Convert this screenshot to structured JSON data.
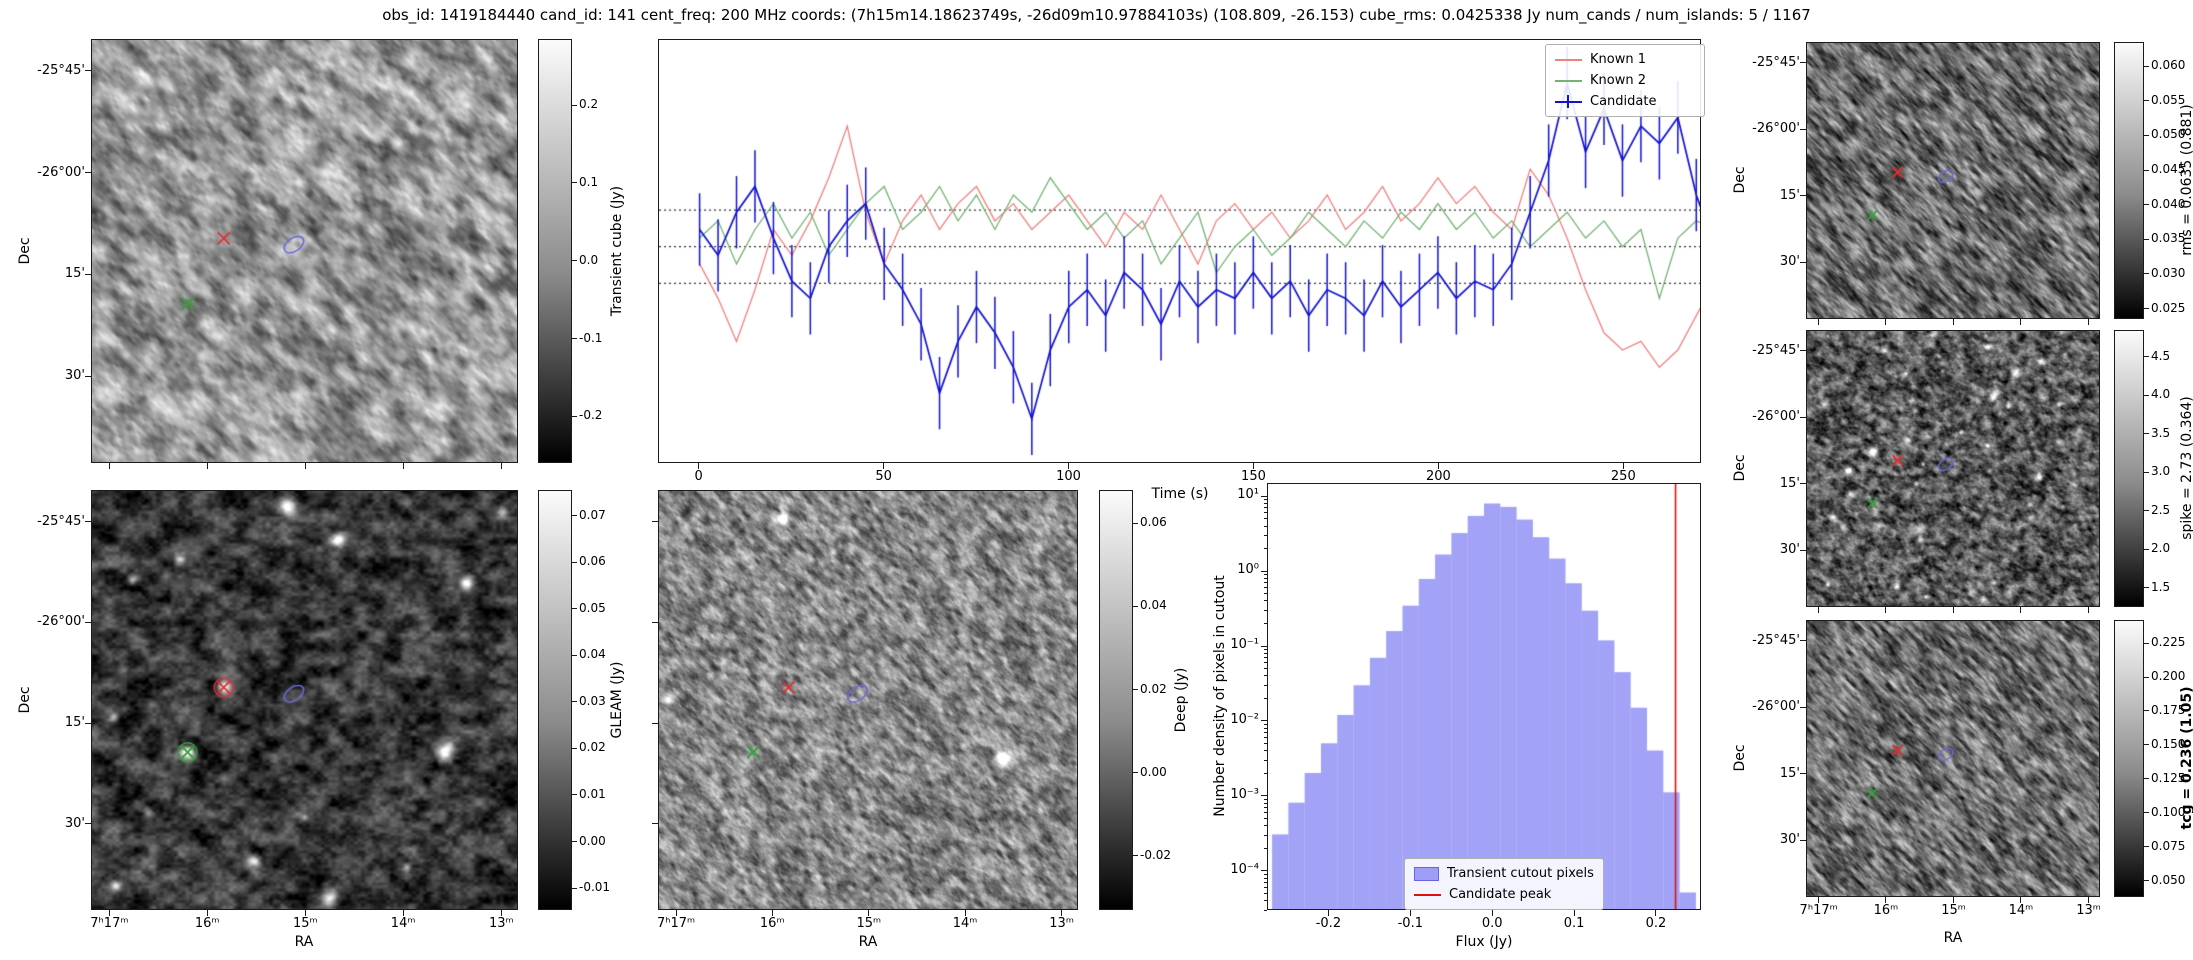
{
  "title": "obs_id: 1419184440 cand_id: 141 cent_freq: 200 MHz coords: (7h15m14.18623749s, -26d09m10.97884103s) (108.809, -26.153) cube_rms: 0.0425338 Jy num_cands / num_islands: 5 / 1167",
  "axis_labels": {
    "dec": "Dec",
    "ra": "RA"
  },
  "dec_ticks": {
    "labels": [
      "-25°45'",
      "-26°00'",
      "15'",
      "30'"
    ],
    "fractions": [
      0.075,
      0.315,
      0.555,
      0.795
    ]
  },
  "ra_ticks": {
    "labels": [
      "7ʰ17ᵐ",
      "16ᵐ",
      "15ᵐ",
      "14ᵐ",
      "13ᵐ"
    ],
    "fractions": [
      0.043,
      0.272,
      0.502,
      0.731,
      0.961
    ]
  },
  "markers": {
    "known_1": {
      "shape": "x",
      "color": "#e03030",
      "fx": 0.31,
      "fy": 0.47
    },
    "known_2": {
      "shape": "x",
      "color": "#35a33a",
      "fx": 0.225,
      "fy": 0.625
    },
    "candidate": {
      "shape": "ellipse",
      "color": "#6a6ad8",
      "fx": 0.475,
      "fy": 0.485
    }
  },
  "cutouts": {
    "transient": {
      "colorbar": {
        "label": "Transient cube (Jy)",
        "tick_labels": [
          "0.2",
          "0.1",
          "0.0",
          "-0.1",
          "-0.2"
        ],
        "tick_values": [
          0.2,
          0.1,
          0.0,
          -0.1,
          -0.2
        ],
        "vmin": -0.26,
        "vmax": 0.285
      }
    },
    "gleam": {
      "colorbar": {
        "label": "GLEAM (Jy)",
        "tick_labels": [
          "0.07",
          "0.06",
          "0.05",
          "0.04",
          "0.03",
          "0.02",
          "0.01",
          "0.00",
          "-0.01"
        ],
        "tick_values": [
          0.07,
          0.06,
          0.05,
          0.04,
          0.03,
          0.02,
          0.01,
          0.0,
          -0.01
        ],
        "vmin": -0.0147,
        "vmax": 0.0755
      }
    },
    "deep": {
      "colorbar": {
        "label": "Deep (Jy)",
        "tick_labels": [
          "0.06",
          "0.04",
          "0.02",
          "0.00",
          "-0.02"
        ],
        "tick_values": [
          0.06,
          0.04,
          0.02,
          0.0,
          -0.02
        ],
        "vmin": -0.033,
        "vmax": 0.068
      }
    },
    "rms": {
      "colorbar": {
        "label": "rms = 0.0635 (0.881)",
        "tick_labels": [
          "0.060",
          "0.055",
          "0.050",
          "0.045",
          "0.040",
          "0.035",
          "0.030",
          "0.025"
        ],
        "tick_values": [
          0.06,
          0.055,
          0.05,
          0.045,
          0.04,
          0.035,
          0.03,
          0.025
        ],
        "vmin": 0.0235,
        "vmax": 0.0635
      }
    },
    "spike": {
      "colorbar": {
        "label": "spike = 2.73 (0.364)",
        "tick_labels": [
          "4.5",
          "4.0",
          "3.5",
          "3.0",
          "2.5",
          "2.0",
          "1.5"
        ],
        "tick_values": [
          4.5,
          4.0,
          3.5,
          3.0,
          2.5,
          2.0,
          1.5
        ],
        "vmin": 1.25,
        "vmax": 4.85
      }
    },
    "tcg": {
      "colorbar": {
        "label": "tcg = 0.236 (1.05)",
        "bold": true,
        "tick_labels": [
          "0.225",
          "0.200",
          "0.175",
          "0.150",
          "0.125",
          "0.100",
          "0.075",
          "0.050"
        ],
        "tick_values": [
          0.225,
          0.2,
          0.175,
          0.15,
          0.125,
          0.1,
          0.075,
          0.05
        ],
        "vmin": 0.038,
        "vmax": 0.242
      }
    }
  },
  "chart_data": [
    {
      "type": "line",
      "name": "lightcurve",
      "title": "",
      "xlabel": "Time (s)",
      "ylabel": "",
      "xlim": [
        -11,
        271
      ],
      "ylim": [
        -0.25,
        0.24
      ],
      "xticks": [
        0,
        50,
        100,
        150,
        200,
        250
      ],
      "xtick_labels": [
        "0",
        "50",
        "100",
        "150",
        "200",
        "250"
      ],
      "hlines": {
        "values": [
          0.0425,
          0.0,
          -0.0425
        ],
        "style": "dotted",
        "color": "#000000"
      },
      "legend_position": "upper right",
      "x": [
        0,
        5,
        10,
        15,
        20,
        25,
        30,
        35,
        40,
        45,
        50,
        55,
        60,
        65,
        70,
        75,
        80,
        85,
        90,
        95,
        100,
        105,
        110,
        115,
        120,
        125,
        130,
        135,
        140,
        145,
        150,
        155,
        160,
        165,
        170,
        175,
        180,
        185,
        190,
        195,
        200,
        205,
        210,
        215,
        220,
        225,
        230,
        235,
        240,
        245,
        250,
        255,
        260,
        265,
        270,
        275
      ],
      "series": [
        {
          "name": "Known 1",
          "color": "#f08080",
          "values": [
            -0.02,
            -0.06,
            -0.11,
            -0.05,
            0.02,
            -0.01,
            0.03,
            0.08,
            0.14,
            0.04,
            -0.02,
            0.03,
            0.06,
            0.02,
            0.05,
            0.07,
            0.03,
            0.05,
            0.02,
            0.04,
            0.06,
            0.03,
            0.0,
            0.04,
            0.02,
            0.06,
            0.02,
            -0.02,
            0.03,
            0.05,
            0.02,
            0.04,
            0.01,
            0.03,
            0.06,
            0.02,
            0.04,
            0.07,
            0.03,
            0.05,
            0.08,
            0.05,
            0.07,
            0.04,
            0.02,
            0.09,
            0.06,
            0.01,
            -0.05,
            -0.1,
            -0.12,
            -0.11,
            -0.14,
            -0.12,
            -0.08,
            -0.04
          ]
        },
        {
          "name": "Known 2",
          "color": "#74b274",
          "values": [
            0.01,
            0.03,
            -0.02,
            0.02,
            0.05,
            0.01,
            0.04,
            -0.01,
            0.02,
            0.05,
            0.07,
            0.02,
            0.04,
            0.07,
            0.03,
            0.06,
            0.02,
            0.06,
            0.04,
            0.08,
            0.05,
            0.02,
            0.04,
            0.01,
            0.03,
            -0.02,
            0.01,
            0.04,
            -0.03,
            0.0,
            0.02,
            -0.01,
            0.01,
            0.04,
            0.02,
            0.0,
            0.03,
            0.01,
            0.04,
            0.02,
            0.05,
            0.02,
            0.04,
            0.01,
            0.03,
            0.0,
            0.02,
            0.04,
            0.01,
            0.03,
            0.0,
            0.02,
            -0.06,
            0.01,
            0.03,
            0.02
          ]
        },
        {
          "name": "Candidate",
          "color": "#1212d0",
          "yerr": 0.042,
          "values": [
            0.02,
            -0.01,
            0.04,
            0.07,
            0.01,
            -0.04,
            -0.06,
            0.0,
            0.03,
            0.05,
            -0.02,
            -0.05,
            -0.09,
            -0.17,
            -0.11,
            -0.07,
            -0.1,
            -0.14,
            -0.2,
            -0.12,
            -0.07,
            -0.05,
            -0.08,
            -0.03,
            -0.05,
            -0.09,
            -0.04,
            -0.07,
            -0.05,
            -0.06,
            -0.03,
            -0.06,
            -0.04,
            -0.08,
            -0.05,
            -0.06,
            -0.08,
            -0.04,
            -0.07,
            -0.05,
            -0.03,
            -0.06,
            -0.04,
            -0.05,
            -0.02,
            0.04,
            0.1,
            0.19,
            0.11,
            0.16,
            0.1,
            0.14,
            0.12,
            0.15,
            0.06,
            0.0
          ]
        }
      ]
    },
    {
      "type": "bar",
      "name": "flux-histogram",
      "title": "",
      "xlabel": "Flux (Jy)",
      "ylabel": "Number density of pixels in cutout",
      "yscale": "log",
      "xlim": [
        -0.275,
        0.255
      ],
      "ylim": [
        3e-05,
        15
      ],
      "xticks": [
        -0.2,
        -0.1,
        0.0,
        0.1,
        0.2
      ],
      "xtick_labels": [
        "-0.2",
        "-0.1",
        "0.0",
        "0.1",
        "0.2"
      ],
      "ytick_values": [
        10,
        1,
        0.1,
        0.01,
        0.001,
        0.0001
      ],
      "ytick_labels": [
        "10¹",
        "10⁰",
        "10⁻¹",
        "10⁻²",
        "10⁻³",
        "10⁻⁴"
      ],
      "bar_color": "rgba(100,100,240,0.6)",
      "bin_width": 0.02,
      "bin_centers": [
        -0.26,
        -0.24,
        -0.22,
        -0.2,
        -0.18,
        -0.16,
        -0.14,
        -0.12,
        -0.1,
        -0.08,
        -0.06,
        -0.04,
        -0.02,
        0.0,
        0.02,
        0.04,
        0.06,
        0.08,
        0.1,
        0.12,
        0.14,
        0.16,
        0.18,
        0.2,
        0.22,
        0.24
      ],
      "densities": [
        0.0003,
        0.0008,
        0.002,
        0.005,
        0.012,
        0.03,
        0.07,
        0.16,
        0.35,
        0.8,
        1.7,
        3.3,
        5.6,
        8.2,
        7.4,
        5.0,
        2.9,
        1.5,
        0.7,
        0.3,
        0.12,
        0.045,
        0.015,
        0.004,
        0.0011,
        5e-05
      ],
      "candidate_peak": {
        "x": 0.225,
        "color": "#dd1111"
      },
      "legend": [
        {
          "label": "Transient cutout pixels",
          "type": "patch"
        },
        {
          "label": "Candidate peak",
          "type": "line"
        }
      ]
    }
  ]
}
